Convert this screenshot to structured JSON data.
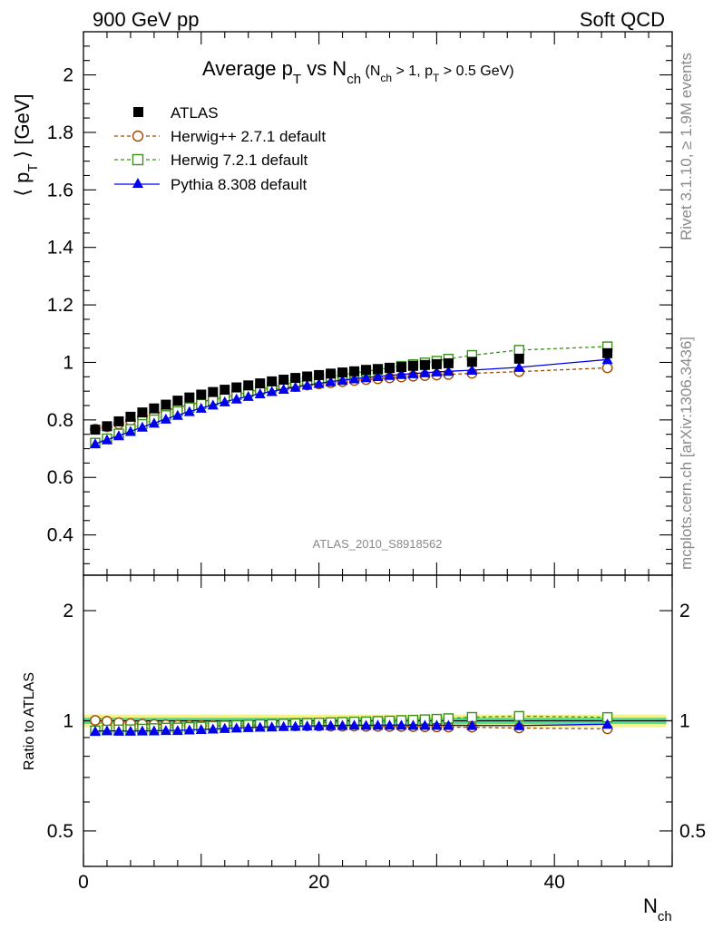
{
  "header": {
    "left": "900 GeV pp",
    "right": "Soft QCD"
  },
  "title": {
    "main": "Average p",
    "main_sub": "T",
    "vs": " vs N",
    "vs_sub": "ch",
    "cuts_a": " (N",
    "cuts_a_sub": "ch",
    "cuts_b": " > 1, p",
    "cuts_b_sub": "T",
    "cuts_c": " > 0.5 GeV)"
  },
  "ylabel": {
    "open": "⟨ p",
    "sub": "T",
    "close": " ⟩  [GeV]"
  },
  "ratio_ylabel": "Ratio to ATLAS",
  "xlabel": {
    "main": "N",
    "sub": "ch"
  },
  "side_text": {
    "rivet": "Rivet 3.1.10, ≥ 1.9M events",
    "mcplots": "mcplots.cern.ch [arXiv:1306.3436]"
  },
  "analysis_tag": "ATLAS_2010_S8918562",
  "legend": [
    {
      "label": "ATLAS",
      "marker": "square-filled",
      "color": "#000000"
    },
    {
      "label": "Herwig++ 2.7.1 default",
      "marker": "circle-open",
      "color": "#9c4a00"
    },
    {
      "label": "Herwig 7.2.1 default",
      "marker": "square-open",
      "color": "#3b8f1a"
    },
    {
      "label": "Pythia 8.308 default",
      "marker": "triangle-filled",
      "color": "#0000ee"
    }
  ],
  "chart_data": {
    "type": "scatter",
    "x": [
      1,
      2,
      3,
      4,
      5,
      6,
      7,
      8,
      9,
      10,
      11,
      12,
      13,
      14,
      15,
      16,
      17,
      18,
      19,
      20,
      21,
      22,
      23,
      24,
      25,
      26,
      27,
      28,
      29,
      30,
      31,
      33,
      37,
      44.5
    ],
    "xlim": [
      0,
      50
    ],
    "xticks": [
      0,
      20,
      40
    ],
    "main_ylim": [
      0.26,
      2.15
    ],
    "main_yticks": [
      0.4,
      0.6,
      0.8,
      1,
      1.2,
      1.4,
      1.6,
      1.8,
      2
    ],
    "ratio_ylim": [
      0.4,
      2.5
    ],
    "ratio_yticks": [
      0.5,
      1,
      2
    ],
    "ratio_log": true,
    "series": [
      {
        "name": "ATLAS",
        "style": "marker-only",
        "values": [
          0.766,
          0.778,
          0.795,
          0.811,
          0.826,
          0.84,
          0.853,
          0.867,
          0.878,
          0.888,
          0.897,
          0.905,
          0.913,
          0.92,
          0.927,
          0.934,
          0.94,
          0.946,
          0.951,
          0.956,
          0.961,
          0.965,
          0.969,
          0.974,
          0.977,
          0.981,
          0.984,
          0.988,
          0.991,
          0.994,
          0.997,
          1.002,
          1.013,
          1.032
        ]
      },
      {
        "name": "Herwig++ 2.7.1 default",
        "style": "dashed",
        "values": [
          0.768,
          0.776,
          0.786,
          0.797,
          0.809,
          0.821,
          0.832,
          0.843,
          0.852,
          0.862,
          0.871,
          0.879,
          0.886,
          0.893,
          0.899,
          0.905,
          0.911,
          0.916,
          0.921,
          0.925,
          0.929,
          0.933,
          0.937,
          0.94,
          0.943,
          0.946,
          0.949,
          0.952,
          0.954,
          0.956,
          0.958,
          0.962,
          0.968,
          0.981
        ]
      },
      {
        "name": "Herwig 7.2.1 default",
        "style": "dashed",
        "values": [
          0.72,
          0.735,
          0.752,
          0.768,
          0.785,
          0.801,
          0.816,
          0.83,
          0.843,
          0.855,
          0.867,
          0.877,
          0.887,
          0.897,
          0.906,
          0.914,
          0.922,
          0.93,
          0.937,
          0.944,
          0.951,
          0.957,
          0.963,
          0.969,
          0.975,
          0.981,
          0.987,
          0.993,
          0.999,
          1.005,
          1.012,
          1.025,
          1.043,
          1.055
        ]
      },
      {
        "name": "Pythia 8.308 default",
        "style": "solid",
        "values": [
          0.717,
          0.731,
          0.745,
          0.76,
          0.775,
          0.789,
          0.803,
          0.816,
          0.829,
          0.841,
          0.852,
          0.863,
          0.873,
          0.882,
          0.891,
          0.899,
          0.907,
          0.914,
          0.921,
          0.927,
          0.933,
          0.938,
          0.943,
          0.947,
          0.951,
          0.955,
          0.958,
          0.961,
          0.964,
          0.967,
          0.969,
          0.973,
          0.983,
          1.01
        ]
      }
    ],
    "ratio_band": {
      "inner": 0.02,
      "outer": 0.04,
      "inner_color": "#4ee39a",
      "outer_color": "#f4f48a"
    }
  }
}
